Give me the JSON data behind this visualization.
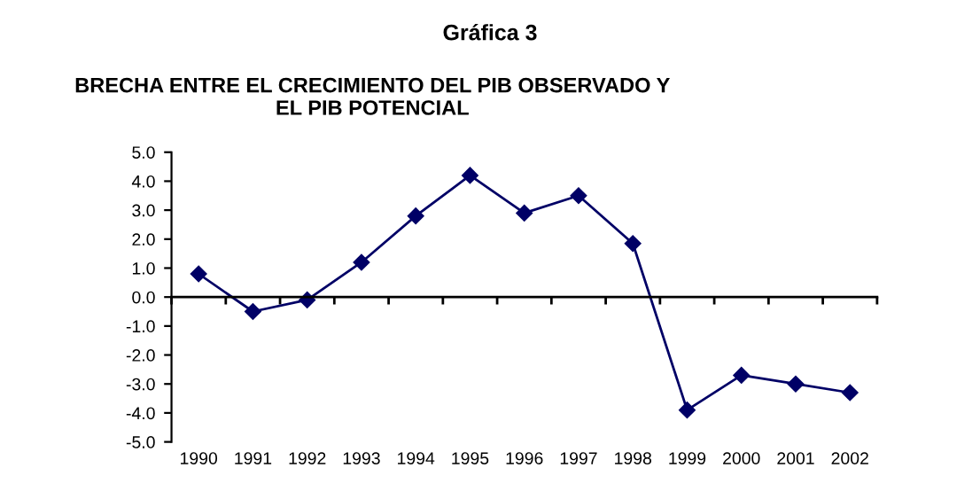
{
  "chart_data": {
    "type": "line",
    "title": "Gráfica 3",
    "subtitle": "BRECHA ENTRE EL CRECIMIENTO DEL PIB OBSERVADO Y\nEL PIB POTENCIAL",
    "categories": [
      "1990",
      "1991",
      "1992",
      "1993",
      "1994",
      "1995",
      "1996",
      "1997",
      "1998",
      "1999",
      "2000",
      "2001",
      "2002"
    ],
    "series": [
      {
        "color": "#000066",
        "values": [
          0.8,
          -0.5,
          -0.1,
          1.2,
          2.8,
          4.2,
          2.9,
          3.5,
          1.85,
          -3.9,
          -2.7,
          -3.0,
          -3.3
        ]
      }
    ],
    "ylim": [
      -5,
      5
    ],
    "yticks": [
      {
        "value": -5,
        "label": "-5.0"
      },
      {
        "value": -4,
        "label": "-4.0"
      },
      {
        "value": -3,
        "label": "-3.0"
      },
      {
        "value": -2,
        "label": "-2.0"
      },
      {
        "value": -1,
        "label": "-1.0"
      },
      {
        "value": 0,
        "label": "0.0"
      },
      {
        "value": 1,
        "label": "1.0"
      },
      {
        "value": 2,
        "label": "2.0"
      },
      {
        "value": 3,
        "label": "3.0"
      },
      {
        "value": 4,
        "label": "4.0"
      },
      {
        "value": 5,
        "label": "5.0"
      }
    ],
    "marker": "diamond",
    "line_style": "solid",
    "legend": false
  }
}
